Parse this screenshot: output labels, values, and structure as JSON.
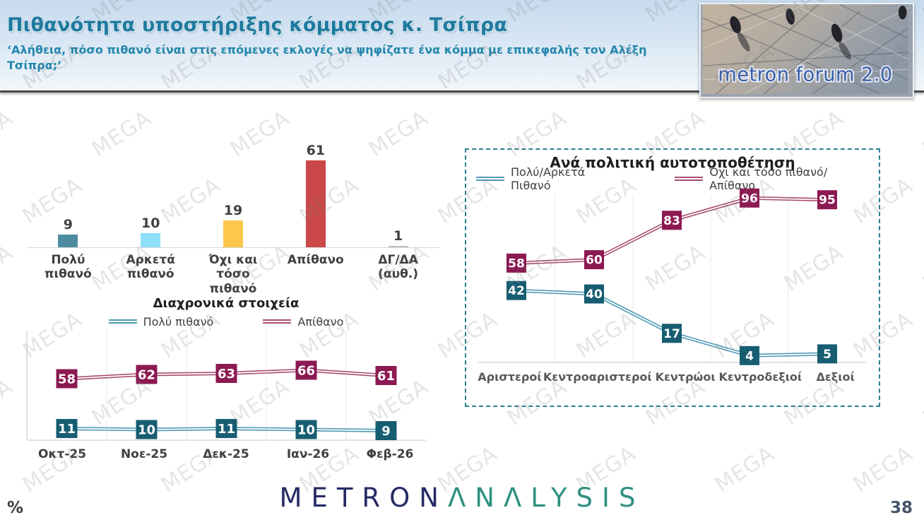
{
  "header": {
    "title": "Πιθανότητα υποστήριξης κόμματος κ. Τσίπρα",
    "subtitle": "‘Αλήθεια, πόσο πιθανό είναι στις επόμενες εκλογές να ψηφίζατε ένα κόμμα με επικεφαλής τον Αλέξη Τσίπρα;’"
  },
  "logo": {
    "text": "metron forum 2.0"
  },
  "watermark": {
    "text": "MEGA"
  },
  "footer": {
    "brand_part1": "METRON",
    "brand_part2": "ΛNΛLYSIS",
    "unit_label": "%",
    "page_number": "38"
  },
  "colors": {
    "header_title": "#1e7a9e",
    "dashed_border": "#2f7e93",
    "axis_line": "#d9d9d9",
    "gridline": "#e8e8e8",
    "value_label": "#404040"
  },
  "chart_data": [
    {
      "id": "likelihood_bar",
      "type": "bar",
      "title": "",
      "categories": [
        "Πολύ πιθανό",
        "Αρκετά πιθανό",
        "Όχι και τόσο πιθανό",
        "Απίθανο",
        "ΔΓ/ΔΑ (αυθ.)"
      ],
      "values": [
        9,
        10,
        19,
        61,
        1
      ],
      "bar_colors": [
        "#4d8ca0",
        "#8edff7",
        "#fbc84c",
        "#cb4848",
        "#c0c0c0"
      ],
      "xlabel": "",
      "ylabel": "",
      "ylim": [
        0,
        70
      ],
      "grid": false,
      "value_labels": true
    },
    {
      "id": "trend_line",
      "type": "line",
      "title": "Διαχρονικά στοιχεία",
      "categories": [
        "Οκτ-25",
        "Νοε-25",
        "Δεκ-25",
        "Ιαν-26",
        "Φεβ-26"
      ],
      "series": [
        {
          "name": "Πολύ πιθανό",
          "values": [
            11,
            10,
            11,
            10,
            9
          ],
          "line_color": "#4e99b4",
          "marker_color": "#175d72"
        },
        {
          "name": "Απίθανο",
          "values": [
            58,
            62,
            63,
            66,
            61
          ],
          "line_color": "#a84e74",
          "marker_color": "#8c1a52"
        }
      ],
      "legend_position": "top",
      "ylim": [
        0,
        100
      ],
      "grid": "vertical",
      "value_labels": true
    },
    {
      "id": "self_placement_line",
      "type": "line",
      "title": "Ανά πολιτική αυτοτοποθέτηση",
      "categories": [
        "Αριστεροί",
        "Κεντροαριστεροί",
        "Κεντρώοι",
        "Κεντροδεξιοί",
        "Δεξιοί"
      ],
      "series": [
        {
          "name": "Πολύ/Αρκετά Πιθανό",
          "values": [
            42,
            40,
            17,
            4,
            5
          ],
          "line_color": "#4e99b4",
          "marker_color": "#175d72"
        },
        {
          "name": "Όχι και τόσο πιθανό/Απίθανο",
          "values": [
            58,
            60,
            83,
            96,
            95
          ],
          "line_color": "#a84e74",
          "marker_color": "#8c1a52"
        }
      ],
      "legend_position": "top",
      "ylim": [
        0,
        100
      ],
      "grid": "vertical",
      "value_labels": true
    }
  ]
}
